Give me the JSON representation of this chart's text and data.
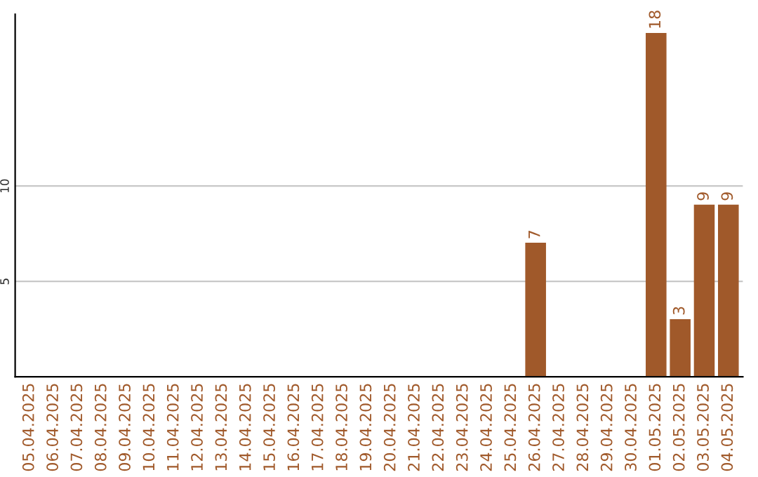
{
  "chart_data": {
    "type": "bar",
    "categories": [
      "05.04.2025",
      "06.04.2025",
      "07.04.2025",
      "08.04.2025",
      "09.04.2025",
      "10.04.2025",
      "11.04.2025",
      "12.04.2025",
      "13.04.2025",
      "14.04.2025",
      "15.04.2025",
      "16.04.2025",
      "17.04.2025",
      "18.04.2025",
      "19.04.2025",
      "20.04.2025",
      "21.04.2025",
      "22.04.2025",
      "23.04.2025",
      "24.04.2025",
      "25.04.2025",
      "26.04.2025",
      "27.04.2025",
      "28.04.2025",
      "29.04.2025",
      "30.04.2025",
      "01.05.2025",
      "02.05.2025",
      "03.05.2025",
      "04.05.2025"
    ],
    "values": [
      0,
      0,
      0,
      0,
      0,
      0,
      0,
      0,
      0,
      0,
      0,
      0,
      0,
      0,
      0,
      0,
      0,
      0,
      0,
      0,
      0,
      7,
      0,
      0,
      0,
      0,
      18,
      3,
      9,
      9
    ],
    "value_labels": [
      null,
      null,
      null,
      null,
      null,
      null,
      null,
      null,
      null,
      null,
      null,
      null,
      null,
      null,
      null,
      null,
      null,
      null,
      null,
      null,
      null,
      "7",
      null,
      null,
      null,
      null,
      "18",
      "3",
      "9",
      "9"
    ],
    "color": "#a0592a",
    "ylim": [
      0,
      19
    ],
    "yticks": [
      5,
      10
    ],
    "grid": "y"
  }
}
